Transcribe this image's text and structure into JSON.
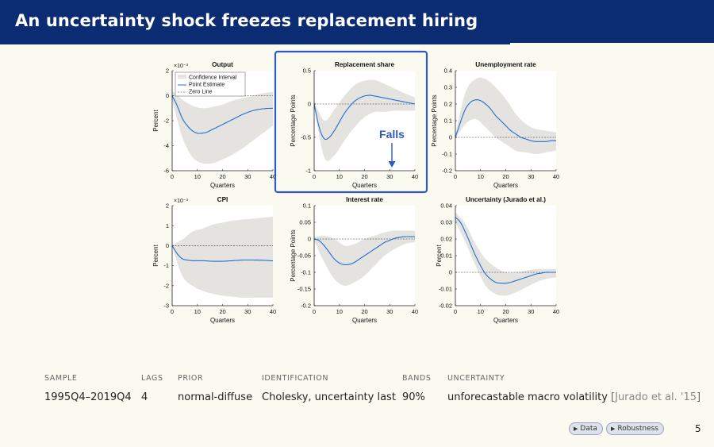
{
  "slide": {
    "title": "An uncertainty shock freezes replacement hiring",
    "page_number": "5"
  },
  "table": {
    "headers": [
      "SAMPLE",
      "LAGS",
      "PRIOR",
      "IDENTIFICATION",
      "BANDS",
      "UNCERTAINTY"
    ],
    "values": [
      "1995Q4–2019Q4",
      "4",
      "normal-diffuse",
      "Cholesky, uncertainty last",
      "90%",
      "unforecastable macro volatility"
    ],
    "citation": "Jurado et al. '15"
  },
  "nav": {
    "data_label": "Data",
    "robustness_label": "Robustness"
  },
  "annotation": {
    "label": "Falls",
    "color": "#2f59c6"
  },
  "colors": {
    "band": "#e4e3e0",
    "line": "#1f6fd1",
    "highlight": "#2f59c6"
  },
  "chart_data": [
    {
      "type": "line",
      "title": "Output",
      "ylabel": "Percent",
      "xlabel": "Quarters",
      "scale_label": "×10⁻³",
      "x": [
        0,
        40
      ],
      "xlim": [
        0,
        40
      ],
      "ylim": [
        -6,
        2
      ],
      "xticks": [
        "0",
        "10",
        "20",
        "30",
        "40"
      ],
      "yticks": [
        "2",
        "0",
        "-2",
        "-4",
        "-6"
      ],
      "legend": [
        "Confidence Interval",
        "Point Estimate",
        "Zero Line"
      ],
      "legend_position": "top-left",
      "point_estimate": [
        [
          0,
          0
        ],
        [
          2,
          -0.8
        ],
        [
          4,
          -1.8
        ],
        [
          6,
          -2.4
        ],
        [
          8,
          -2.8
        ],
        [
          10,
          -3.0
        ],
        [
          12,
          -3.0
        ],
        [
          14,
          -2.9
        ],
        [
          16,
          -2.7
        ],
        [
          18,
          -2.5
        ],
        [
          20,
          -2.3
        ],
        [
          24,
          -1.9
        ],
        [
          28,
          -1.5
        ],
        [
          32,
          -1.2
        ],
        [
          36,
          -1.05
        ],
        [
          40,
          -1.0
        ]
      ],
      "band_upper": [
        [
          0,
          0.4
        ],
        [
          4,
          -0.3
        ],
        [
          8,
          -0.8
        ],
        [
          12,
          -1.0
        ],
        [
          16,
          -0.9
        ],
        [
          20,
          -0.7
        ],
        [
          24,
          -0.4
        ],
        [
          28,
          -0.2
        ],
        [
          32,
          0.0
        ],
        [
          36,
          0.2
        ],
        [
          40,
          0.3
        ]
      ],
      "band_lower": [
        [
          0,
          -0.4
        ],
        [
          4,
          -3.3
        ],
        [
          8,
          -4.9
        ],
        [
          12,
          -5.4
        ],
        [
          16,
          -5.4
        ],
        [
          20,
          -5.1
        ],
        [
          24,
          -4.7
        ],
        [
          28,
          -4.2
        ],
        [
          32,
          -3.6
        ],
        [
          36,
          -3.0
        ],
        [
          40,
          -2.4
        ]
      ]
    },
    {
      "type": "line",
      "title": "Replacement share",
      "ylabel": "Percentage Points",
      "xlabel": "Quarters",
      "xlim": [
        0,
        40
      ],
      "ylim": [
        -1,
        0.5
      ],
      "xticks": [
        "0",
        "10",
        "20",
        "30",
        "40"
      ],
      "yticks": [
        "0.5",
        "0",
        "-0.5",
        "-1"
      ],
      "point_estimate": [
        [
          0,
          0
        ],
        [
          2,
          -0.35
        ],
        [
          4,
          -0.52
        ],
        [
          6,
          -0.5
        ],
        [
          8,
          -0.4
        ],
        [
          10,
          -0.27
        ],
        [
          12,
          -0.14
        ],
        [
          14,
          -0.04
        ],
        [
          16,
          0.04
        ],
        [
          18,
          0.09
        ],
        [
          20,
          0.12
        ],
        [
          22,
          0.13
        ],
        [
          24,
          0.12
        ],
        [
          28,
          0.09
        ],
        [
          32,
          0.06
        ],
        [
          36,
          0.03
        ],
        [
          40,
          0.0
        ]
      ],
      "band_upper": [
        [
          0,
          0.05
        ],
        [
          4,
          -0.25
        ],
        [
          8,
          -0.08
        ],
        [
          12,
          0.12
        ],
        [
          16,
          0.28
        ],
        [
          20,
          0.35
        ],
        [
          24,
          0.36
        ],
        [
          28,
          0.3
        ],
        [
          32,
          0.23
        ],
        [
          36,
          0.16
        ],
        [
          40,
          0.1
        ]
      ],
      "band_lower": [
        [
          0,
          -0.05
        ],
        [
          4,
          -0.8
        ],
        [
          8,
          -0.77
        ],
        [
          12,
          -0.55
        ],
        [
          16,
          -0.35
        ],
        [
          20,
          -0.2
        ],
        [
          24,
          -0.12
        ],
        [
          28,
          -0.12
        ],
        [
          32,
          -0.1
        ],
        [
          36,
          -0.1
        ],
        [
          40,
          -0.1
        ]
      ]
    },
    {
      "type": "line",
      "title": "Unemployment rate",
      "ylabel": "Percentage Points",
      "xlabel": "Quarters",
      "xlim": [
        0,
        40
      ],
      "ylim": [
        -0.2,
        0.4
      ],
      "xticks": [
        "0",
        "10",
        "20",
        "30",
        "40"
      ],
      "yticks": [
        "0.4",
        "0.3",
        "0.2",
        "0.1",
        "0",
        "-0.1",
        "-0.2"
      ],
      "point_estimate": [
        [
          0,
          0
        ],
        [
          2,
          0.09
        ],
        [
          4,
          0.17
        ],
        [
          6,
          0.21
        ],
        [
          8,
          0.225
        ],
        [
          10,
          0.22
        ],
        [
          12,
          0.2
        ],
        [
          14,
          0.17
        ],
        [
          16,
          0.13
        ],
        [
          18,
          0.1
        ],
        [
          20,
          0.07
        ],
        [
          22,
          0.04
        ],
        [
          24,
          0.02
        ],
        [
          26,
          0.0
        ],
        [
          28,
          -0.01
        ],
        [
          30,
          -0.02
        ],
        [
          32,
          -0.025
        ],
        [
          34,
          -0.025
        ],
        [
          36,
          -0.025
        ],
        [
          38,
          -0.02
        ],
        [
          40,
          -0.02
        ]
      ],
      "band_upper": [
        [
          0,
          0.02
        ],
        [
          4,
          0.27
        ],
        [
          8,
          0.35
        ],
        [
          12,
          0.35
        ],
        [
          16,
          0.3
        ],
        [
          20,
          0.23
        ],
        [
          24,
          0.14
        ],
        [
          28,
          0.08
        ],
        [
          32,
          0.05
        ],
        [
          36,
          0.04
        ],
        [
          40,
          0.03
        ]
      ],
      "band_lower": [
        [
          0,
          -0.01
        ],
        [
          4,
          0.08
        ],
        [
          8,
          0.11
        ],
        [
          12,
          0.06
        ],
        [
          16,
          0.0
        ],
        [
          20,
          -0.04
        ],
        [
          24,
          -0.08
        ],
        [
          28,
          -0.09
        ],
        [
          32,
          -0.1
        ],
        [
          36,
          -0.09
        ],
        [
          40,
          -0.08
        ]
      ]
    },
    {
      "type": "line",
      "title": "CPI",
      "ylabel": "Percent",
      "xlabel": "Quarters",
      "scale_label": "×10⁻³",
      "xlim": [
        0,
        40
      ],
      "ylim": [
        -3,
        2
      ],
      "xticks": [
        "0",
        "10",
        "20",
        "30",
        "40"
      ],
      "yticks": [
        "2",
        "1",
        "0",
        "-1",
        "-2",
        "-3"
      ],
      "point_estimate": [
        [
          0,
          0
        ],
        [
          2,
          -0.4
        ],
        [
          4,
          -0.65
        ],
        [
          6,
          -0.72
        ],
        [
          8,
          -0.75
        ],
        [
          12,
          -0.75
        ],
        [
          16,
          -0.78
        ],
        [
          20,
          -0.78
        ],
        [
          24,
          -0.75
        ],
        [
          28,
          -0.72
        ],
        [
          32,
          -0.72
        ],
        [
          36,
          -0.73
        ],
        [
          40,
          -0.76
        ]
      ],
      "band_upper": [
        [
          0,
          0.05
        ],
        [
          4,
          0.3
        ],
        [
          8,
          0.7
        ],
        [
          12,
          0.85
        ],
        [
          16,
          1.05
        ],
        [
          20,
          1.15
        ],
        [
          24,
          1.25
        ],
        [
          28,
          1.3
        ],
        [
          32,
          1.35
        ],
        [
          36,
          1.4
        ],
        [
          40,
          1.45
        ]
      ],
      "band_lower": [
        [
          0,
          -0.05
        ],
        [
          4,
          -1.5
        ],
        [
          8,
          -2.0
        ],
        [
          12,
          -2.25
        ],
        [
          16,
          -2.4
        ],
        [
          20,
          -2.5
        ],
        [
          24,
          -2.55
        ],
        [
          28,
          -2.6
        ],
        [
          32,
          -2.6
        ],
        [
          36,
          -2.6
        ],
        [
          40,
          -2.6
        ]
      ]
    },
    {
      "type": "line",
      "title": "Interest rate",
      "ylabel": "Percentage Points",
      "xlabel": "Quarters",
      "xlim": [
        0,
        40
      ],
      "ylim": [
        -0.2,
        0.1
      ],
      "xticks": [
        "0",
        "10",
        "20",
        "30",
        "40"
      ],
      "yticks": [
        "0.1",
        "0.05",
        "0",
        "-0.05",
        "-0.1",
        "-0.15",
        "-0.2"
      ],
      "point_estimate": [
        [
          0,
          0
        ],
        [
          2,
          -0.005
        ],
        [
          4,
          -0.02
        ],
        [
          6,
          -0.04
        ],
        [
          8,
          -0.06
        ],
        [
          10,
          -0.072
        ],
        [
          12,
          -0.077
        ],
        [
          14,
          -0.076
        ],
        [
          16,
          -0.07
        ],
        [
          18,
          -0.06
        ],
        [
          20,
          -0.05
        ],
        [
          22,
          -0.04
        ],
        [
          24,
          -0.03
        ],
        [
          26,
          -0.02
        ],
        [
          28,
          -0.01
        ],
        [
          30,
          -0.004
        ],
        [
          32,
          0.002
        ],
        [
          34,
          0.005
        ],
        [
          36,
          0.007
        ],
        [
          38,
          0.007
        ],
        [
          40,
          0.007
        ]
      ],
      "band_upper": [
        [
          0,
          0.005
        ],
        [
          4,
          0.01
        ],
        [
          8,
          0.0
        ],
        [
          12,
          -0.02
        ],
        [
          16,
          -0.015
        ],
        [
          20,
          0.0
        ],
        [
          24,
          0.01
        ],
        [
          28,
          0.02
        ],
        [
          32,
          0.025
        ],
        [
          36,
          0.025
        ],
        [
          40,
          0.025
        ]
      ],
      "band_lower": [
        [
          0,
          -0.005
        ],
        [
          4,
          -0.07
        ],
        [
          8,
          -0.12
        ],
        [
          12,
          -0.14
        ],
        [
          16,
          -0.13
        ],
        [
          20,
          -0.11
        ],
        [
          24,
          -0.08
        ],
        [
          28,
          -0.05
        ],
        [
          32,
          -0.03
        ],
        [
          36,
          -0.015
        ],
        [
          40,
          -0.01
        ]
      ]
    },
    {
      "type": "line",
      "title": "Uncertainty (Jurado et al.)",
      "ylabel": "Percent",
      "xlabel": "Quarters",
      "xlim": [
        0,
        40
      ],
      "ylim": [
        -0.02,
        0.04
      ],
      "xticks": [
        "0",
        "10",
        "20",
        "30",
        "40"
      ],
      "yticks": [
        "0.04",
        "0.03",
        "0.02",
        "0.01",
        "0",
        "-0.01",
        "-0.02"
      ],
      "point_estimate": [
        [
          0,
          0.033
        ],
        [
          2,
          0.03
        ],
        [
          4,
          0.024
        ],
        [
          6,
          0.017
        ],
        [
          8,
          0.01
        ],
        [
          10,
          0.004
        ],
        [
          12,
          -0.001
        ],
        [
          14,
          -0.004
        ],
        [
          16,
          -0.006
        ],
        [
          18,
          -0.0065
        ],
        [
          20,
          -0.0065
        ],
        [
          22,
          -0.006
        ],
        [
          24,
          -0.005
        ],
        [
          26,
          -0.004
        ],
        [
          28,
          -0.003
        ],
        [
          30,
          -0.002
        ],
        [
          32,
          -0.001
        ],
        [
          34,
          -0.0005
        ],
        [
          36,
          0.0
        ],
        [
          38,
          0.0
        ],
        [
          40,
          0.0
        ]
      ],
      "band_upper": [
        [
          0,
          0.036
        ],
        [
          4,
          0.029
        ],
        [
          8,
          0.017
        ],
        [
          12,
          0.008
        ],
        [
          16,
          0.003
        ],
        [
          20,
          0.0
        ],
        [
          24,
          0.0
        ],
        [
          28,
          0.001
        ],
        [
          32,
          0.002
        ],
        [
          36,
          0.002
        ],
        [
          40,
          0.002
        ]
      ],
      "band_lower": [
        [
          0,
          0.03
        ],
        [
          4,
          0.018
        ],
        [
          8,
          0.004
        ],
        [
          12,
          -0.008
        ],
        [
          16,
          -0.013
        ],
        [
          20,
          -0.014
        ],
        [
          24,
          -0.012
        ],
        [
          28,
          -0.009
        ],
        [
          32,
          -0.006
        ],
        [
          36,
          -0.004
        ],
        [
          40,
          -0.003
        ]
      ]
    }
  ]
}
